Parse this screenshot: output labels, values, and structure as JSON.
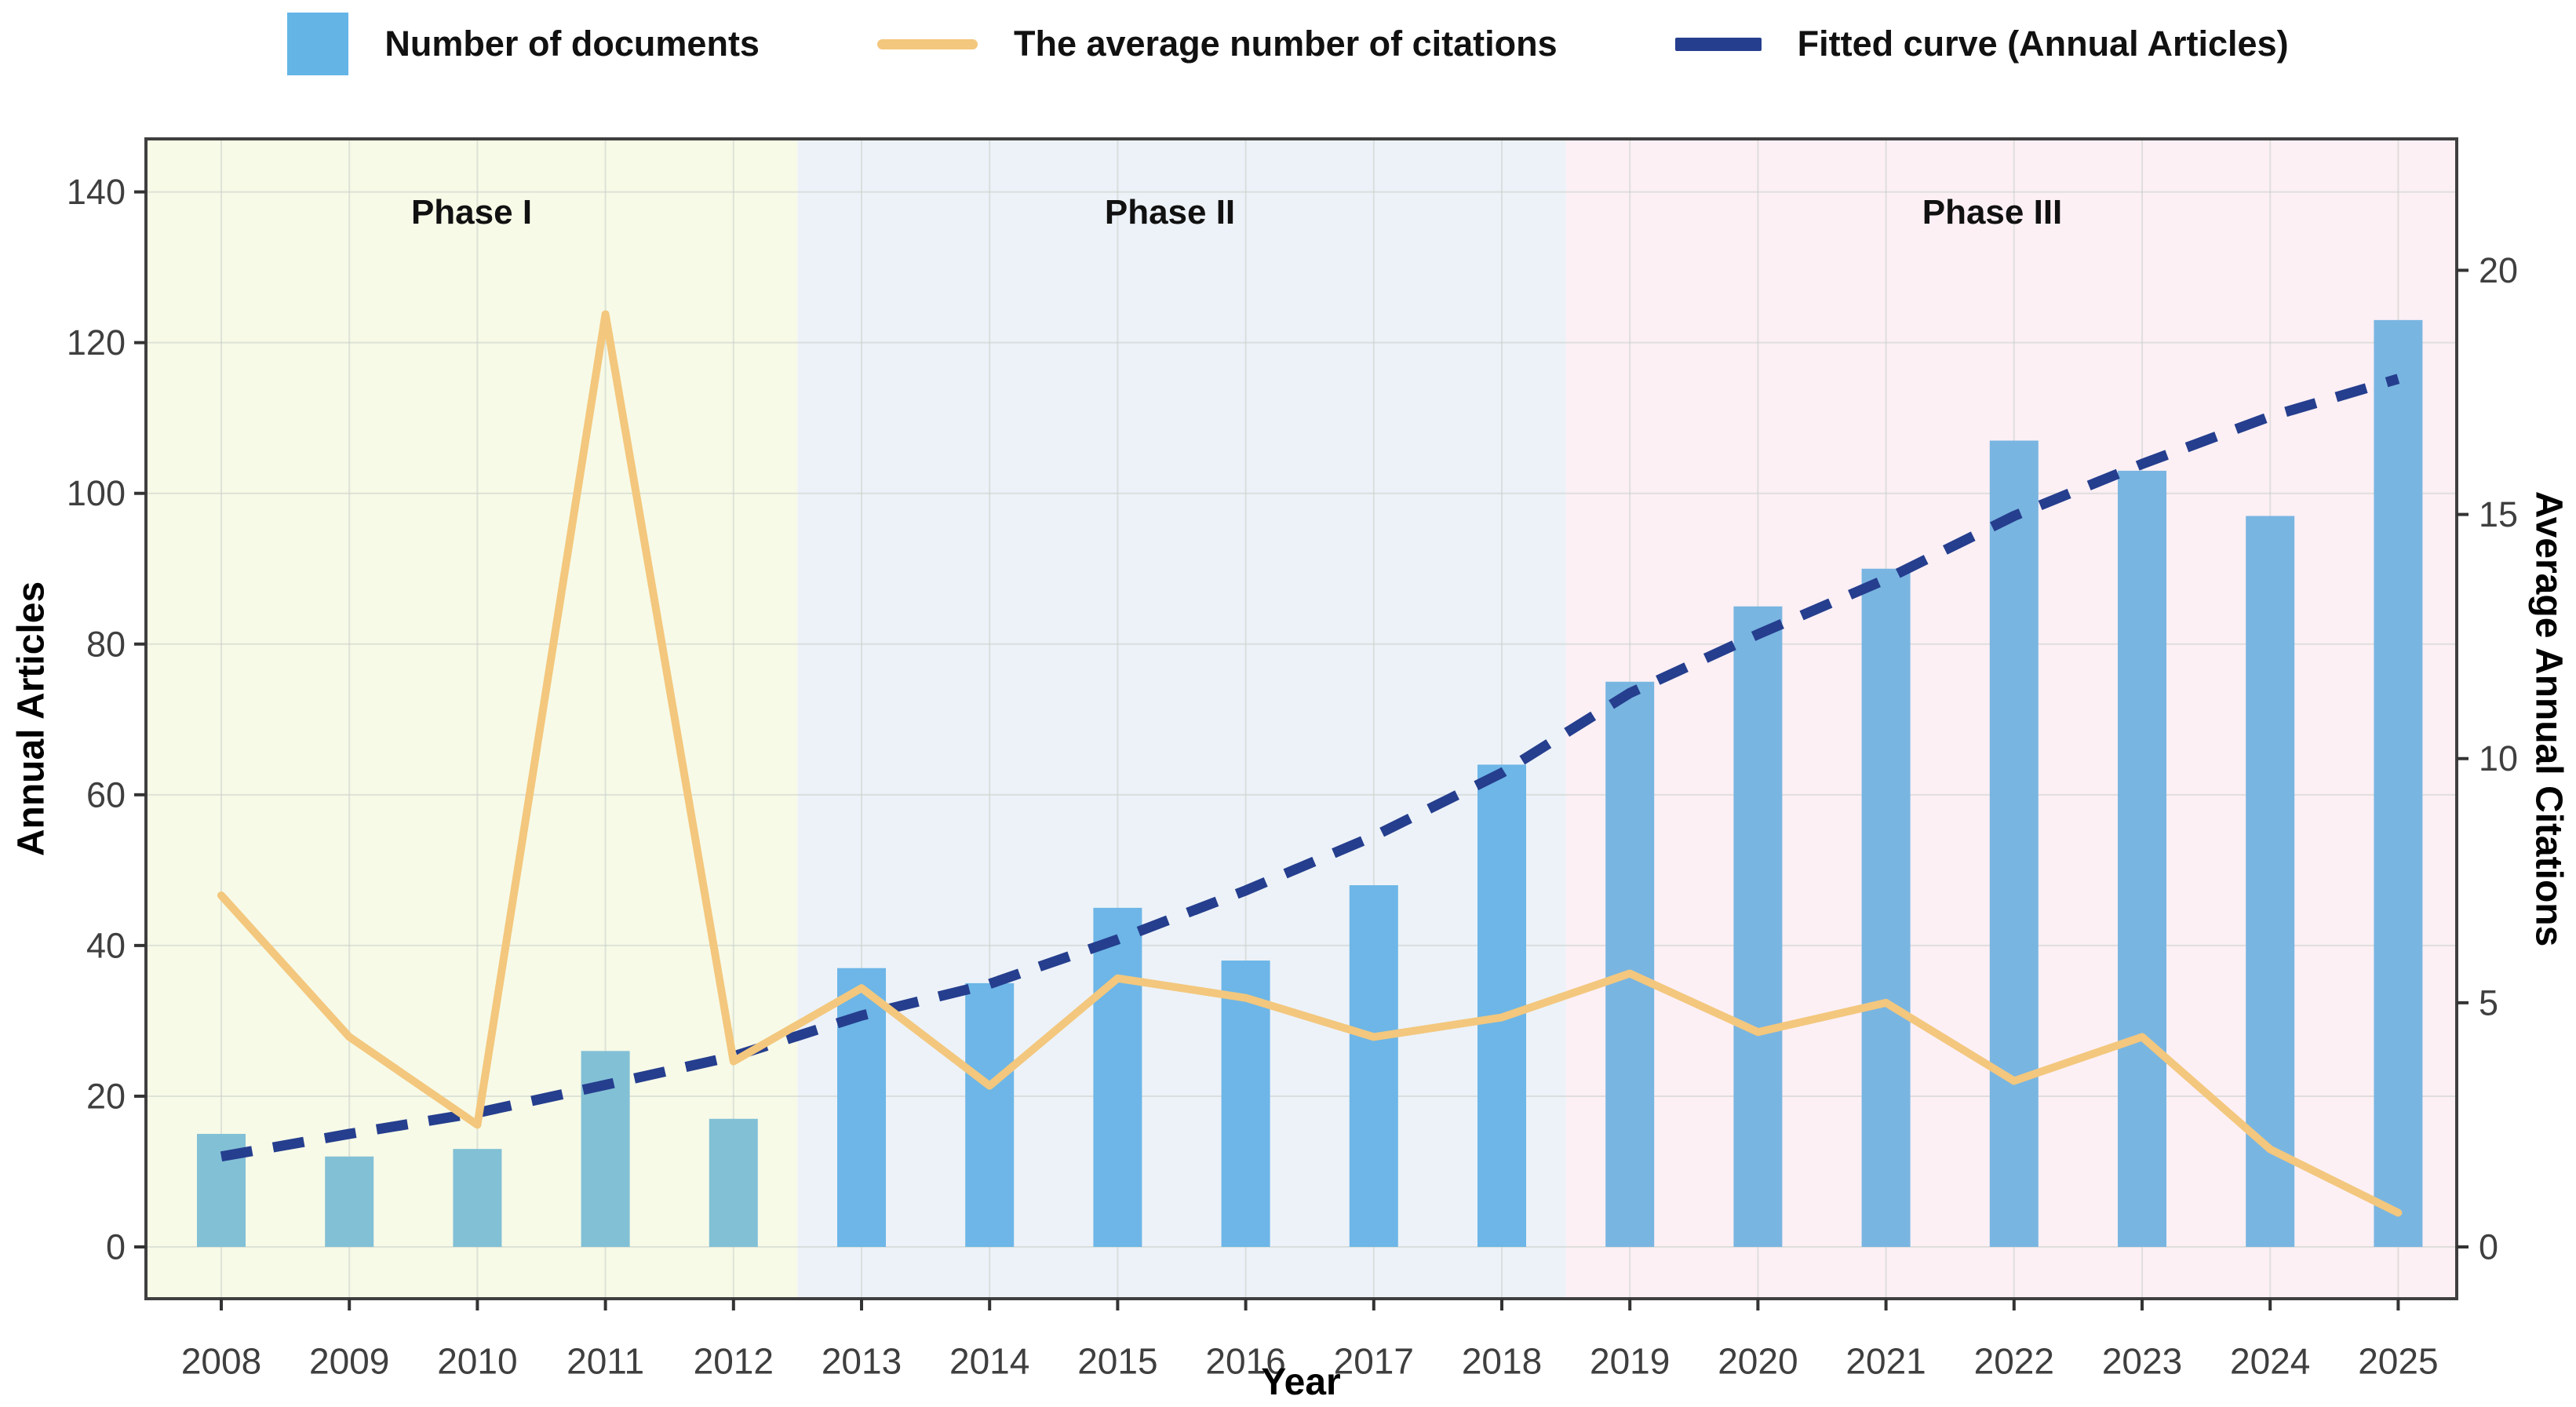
{
  "legend": {
    "items": [
      {
        "label": "Number of documents",
        "swatch": "bar-swatch-icon",
        "color": "#64b5e6"
      },
      {
        "label": "The average number of citations",
        "swatch": "line-swatch-icon",
        "color": "#f3c77d"
      },
      {
        "label": "Fitted curve (Annual Articles)",
        "swatch": "dash-swatch-icon",
        "color": "#253e8e"
      }
    ]
  },
  "chart_data": {
    "type": "bar",
    "x": [
      2008,
      2009,
      2010,
      2011,
      2012,
      2013,
      2014,
      2015,
      2016,
      2017,
      2018,
      2019,
      2020,
      2021,
      2022,
      2023,
      2024,
      2025
    ],
    "x_tick_labels": [
      "2008",
      "2009",
      "2010",
      "2011",
      "2012",
      "2013",
      "2014",
      "2015",
      "2016",
      "2017",
      "2018",
      "2019",
      "2020",
      "2021",
      "2022",
      "2023",
      "2024",
      "2025"
    ],
    "series": [
      {
        "name": "Number of documents",
        "kind": "bar",
        "axis": "left",
        "values": [
          15,
          12,
          13,
          26,
          17,
          37,
          35,
          45,
          38,
          48,
          64,
          75,
          85,
          90,
          107,
          103,
          97,
          123
        ]
      },
      {
        "name": "The average number of citations",
        "kind": "line",
        "axis": "right",
        "values": [
          7.2,
          4.3,
          2.5,
          19.1,
          3.8,
          5.3,
          3.3,
          5.5,
          5.1,
          4.3,
          4.7,
          5.6,
          4.4,
          5.0,
          3.4,
          4.3,
          2.0,
          0.7
        ]
      },
      {
        "name": "Fitted curve (Annual Articles)",
        "kind": "dashed-line",
        "axis": "left",
        "values": [
          12,
          15,
          17.8,
          21.5,
          25.3,
          30.7,
          34.9,
          40.8,
          47.3,
          54.5,
          62.9,
          73.5,
          81.3,
          88.6,
          97,
          103.9,
          110.2,
          115.2
        ]
      }
    ],
    "left_axis": {
      "label": "Annual Articles",
      "ticks": [
        0,
        20,
        40,
        60,
        80,
        100,
        120,
        140
      ],
      "range": [
        -7,
        147.5
      ],
      "grid": true
    },
    "right_axis": {
      "label": "Average Annual Citations",
      "ticks": [
        0,
        5,
        10,
        15,
        20
      ],
      "left_units_per_right_unit": 6.48
    },
    "x_axis": {
      "label": "Year"
    },
    "legend_position": "top",
    "phases": [
      {
        "label": "Phase I",
        "from_year": 2008,
        "to_year": 2012.5,
        "bg": "#f7fae7",
        "bar_color": "#82c0d6"
      },
      {
        "label": "Phase II",
        "from_year": 2012.5,
        "to_year": 2018.5,
        "bg": "#edf2f8",
        "bar_color": "#6db6e7"
      },
      {
        "label": "Phase III",
        "from_year": 2018.5,
        "to_year": 2025,
        "bg": "#fcf0f5",
        "bar_color": "#79b5e1"
      }
    ]
  },
  "colors": {
    "citation_line": "#f3c77d",
    "fitted_line": "#253e8e",
    "legend_bar": "#64b5e6",
    "grid": "#c9cfc9",
    "axis_border": "#3f3f3f",
    "tick_mark": "#333333",
    "tick_text": "#3f3f3f"
  }
}
